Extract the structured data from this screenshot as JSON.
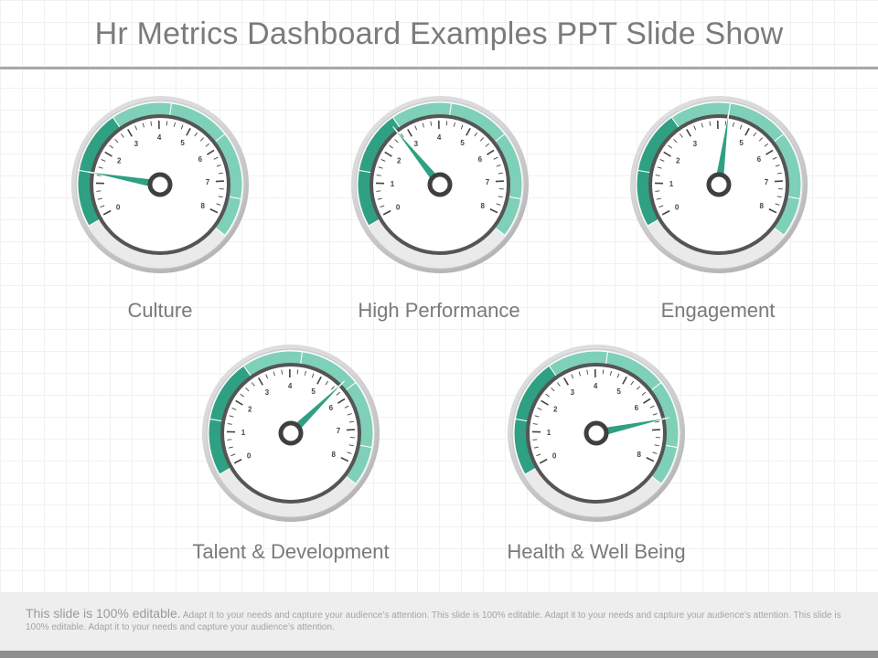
{
  "slide": {
    "title": "Hr Metrics Dashboard Examples PPT Slide Show",
    "footer_lead": "This slide is 100% editable.",
    "footer_body": "Adapt it to your needs and capture your audience’s attention. This slide is 100% editable. Adapt it to your needs and capture your audience’s attention. This slide is 100% editable. Adapt it to your needs and capture your audience’s attention."
  },
  "colors": {
    "accent": "#2fa083",
    "accent_light": "#7fd0b8",
    "text": "#7a7a7a"
  },
  "gauges": [
    {
      "label": "Culture",
      "value": 1.3,
      "ticks": [
        "0",
        "2",
        "3",
        "4",
        "5",
        "6",
        "7",
        "8"
      ]
    },
    {
      "label": "High Performance",
      "value": 2.7,
      "ticks": [
        "0",
        "1",
        "2",
        "3",
        "4",
        "5",
        "6",
        "7",
        "8"
      ]
    },
    {
      "label": "Engagement",
      "value": 4.3,
      "ticks": [
        "0",
        "1",
        "2",
        "3",
        "5",
        "6",
        "7",
        "8"
      ]
    },
    {
      "label": "Talent & Development",
      "value": 5.6,
      "ticks": [
        "0",
        "1",
        "2",
        "3",
        "4",
        "5",
        "6",
        "7",
        "8"
      ]
    },
    {
      "label": "Health & Well Being",
      "value": 6.7,
      "ticks": [
        "0",
        "1",
        "2",
        "3",
        "4",
        "5",
        "6",
        "8"
      ]
    }
  ]
}
